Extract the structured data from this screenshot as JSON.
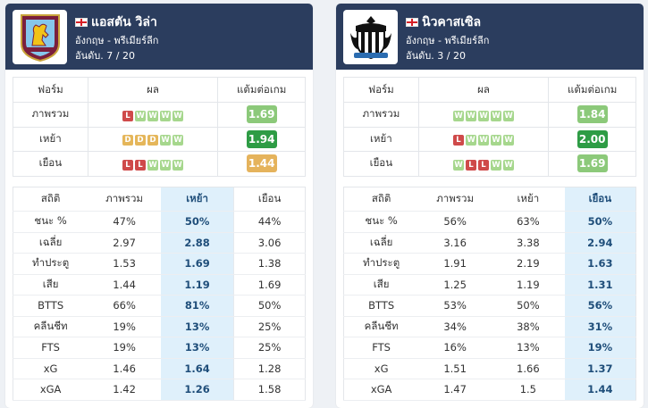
{
  "teams": [
    {
      "name": "แอสตัน วิล่า",
      "league": "อังกฤษ - พรีเมียร์ลีก",
      "rank": "อันดับ. 7 / 20",
      "logo_icon": "aston-villa-crest",
      "form_headers": {
        "label": "ฟอร์ม",
        "results": "ผล",
        "ppg": "แต้มต่อเกม"
      },
      "form_rows": [
        {
          "label": "ภาพรวม",
          "results": [
            "L",
            "W",
            "W",
            "W",
            "W"
          ],
          "ppg": "1.69",
          "ppg_color": "#8cc97a"
        },
        {
          "label": "เหย้า",
          "results": [
            "D",
            "D",
            "D",
            "W",
            "W"
          ],
          "ppg": "1.94",
          "ppg_color": "#2e9c45"
        },
        {
          "label": "เยือน",
          "results": [
            "L",
            "L",
            "W",
            "W",
            "W"
          ],
          "ppg": "1.44",
          "ppg_color": "#e5b35c"
        }
      ],
      "stats_headers": [
        "สถิติ",
        "ภาพรวม",
        "เหย้า",
        "เยือน"
      ],
      "highlight_col": 2,
      "stats_rows": [
        [
          "ชนะ %",
          "47%",
          "50%",
          "44%"
        ],
        [
          "เฉลี่ย",
          "2.97",
          "2.88",
          "3.06"
        ],
        [
          "ทำประตู",
          "1.53",
          "1.69",
          "1.38"
        ],
        [
          "เสีย",
          "1.44",
          "1.19",
          "1.69"
        ],
        [
          "BTTS",
          "66%",
          "81%",
          "50%"
        ],
        [
          "คลีนชีท",
          "19%",
          "13%",
          "25%"
        ],
        [
          "FTS",
          "19%",
          "13%",
          "25%"
        ],
        [
          "xG",
          "1.46",
          "1.64",
          "1.28"
        ],
        [
          "xGA",
          "1.42",
          "1.26",
          "1.58"
        ]
      ]
    },
    {
      "name": "นิวคาสเซิล",
      "league": "อังกฤษ - พรีเมียร์ลีก",
      "rank": "อันดับ. 3 / 20",
      "logo_icon": "newcastle-crest",
      "form_headers": {
        "label": "ฟอร์ม",
        "results": "ผล",
        "ppg": "แต้มต่อเกม"
      },
      "form_rows": [
        {
          "label": "ภาพรวม",
          "results": [
            "W",
            "W",
            "W",
            "W",
            "W"
          ],
          "ppg": "1.84",
          "ppg_color": "#8cc97a"
        },
        {
          "label": "เหย้า",
          "results": [
            "L",
            "W",
            "W",
            "W",
            "W"
          ],
          "ppg": "2.00",
          "ppg_color": "#2e9c45"
        },
        {
          "label": "เยือน",
          "results": [
            "W",
            "L",
            "L",
            "W",
            "W"
          ],
          "ppg": "1.69",
          "ppg_color": "#8cc97a"
        }
      ],
      "stats_headers": [
        "สถิติ",
        "ภาพรวม",
        "เหย้า",
        "เยือน"
      ],
      "highlight_col": 3,
      "stats_rows": [
        [
          "ชนะ %",
          "56%",
          "63%",
          "50%"
        ],
        [
          "เฉลี่ย",
          "3.16",
          "3.38",
          "2.94"
        ],
        [
          "ทำประตู",
          "1.91",
          "2.19",
          "1.63"
        ],
        [
          "เสีย",
          "1.25",
          "1.19",
          "1.31"
        ],
        [
          "BTTS",
          "53%",
          "50%",
          "56%"
        ],
        [
          "คลีนชีท",
          "34%",
          "38%",
          "31%"
        ],
        [
          "FTS",
          "16%",
          "13%",
          "19%"
        ],
        [
          "xG",
          "1.51",
          "1.66",
          "1.37"
        ],
        [
          "xGA",
          "1.47",
          "1.5",
          "1.44"
        ]
      ]
    }
  ]
}
